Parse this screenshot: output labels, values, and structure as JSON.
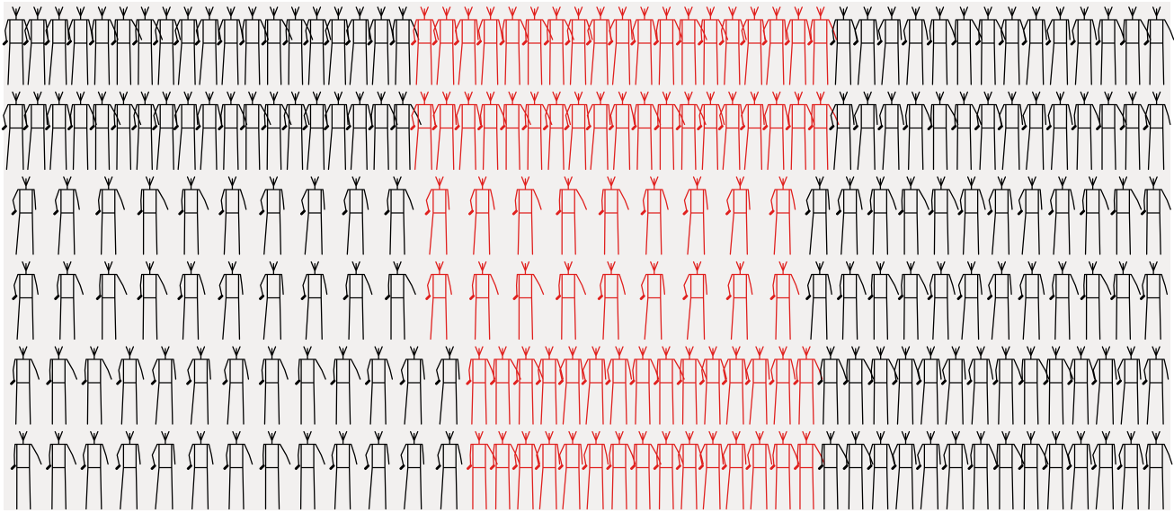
{
  "rows": [
    {
      "segments": [
        {
          "color": "#000000"
        },
        {
          "color": "#e0201e"
        },
        {
          "color": "#000000"
        }
      ]
    },
    {
      "segments": [
        {
          "color": "#000000"
        },
        {
          "color": "#e0201e"
        },
        {
          "color": "#000000"
        }
      ]
    },
    {
      "segments": [
        {
          "color": "#000000"
        },
        {
          "color": "#e0201e"
        },
        {
          "color": "#000000"
        }
      ]
    },
    {
      "segments": [
        {
          "color": "#000000"
        },
        {
          "color": "#e0201e"
        },
        {
          "color": "#000000"
        }
      ]
    },
    {
      "segments": [
        {
          "color": "#000000"
        },
        {
          "color": "#e0201e"
        },
        {
          "color": "#000000"
        }
      ]
    },
    {
      "segments": [
        {
          "color": "#000000"
        },
        {
          "color": "#e0201e"
        },
        {
          "color": "#000000"
        }
      ]
    }
  ]
}
